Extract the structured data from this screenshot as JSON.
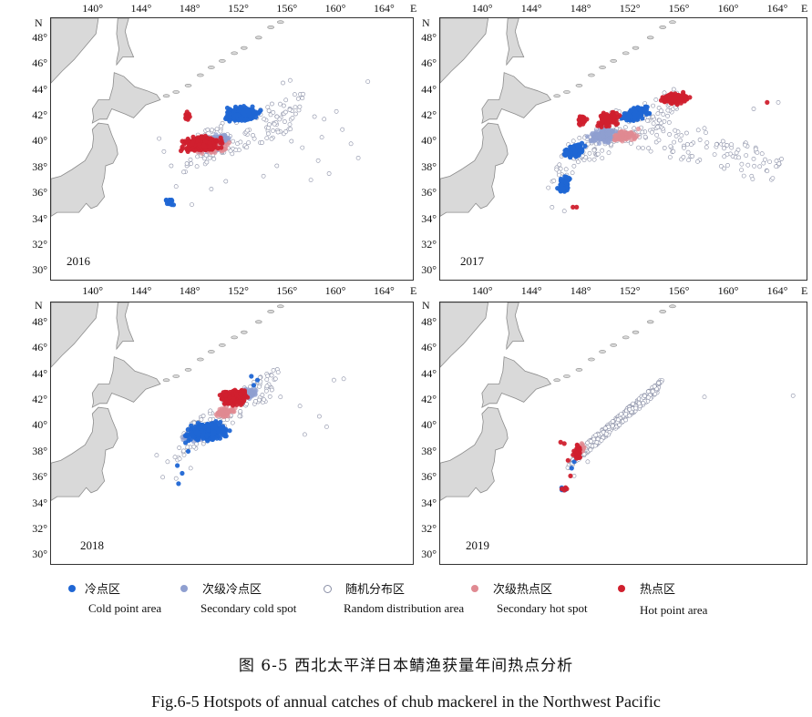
{
  "colors": {
    "cold": "#1f66d4",
    "secondary_cold": "#8f9fd0",
    "random": "#8a8fa6",
    "secondary_hot": "#e08a92",
    "hot": "#d0202e",
    "land": "#d9d9d9",
    "land_edge": "#8c8c8c"
  },
  "axes": {
    "n_label": "N",
    "e_label": "E",
    "x_ticks": [
      "140°",
      "144°",
      "148°",
      "152°",
      "156°",
      "160°",
      "164°"
    ],
    "y_ticks": [
      "48°",
      "46°",
      "44°",
      "42°",
      "40°",
      "38°",
      "36°",
      "34°",
      "32°",
      "30°"
    ]
  },
  "panels": [
    {
      "year": "2016",
      "dominant": "hot/cold split"
    },
    {
      "year": "2017",
      "dominant": "hot/cold mixed"
    },
    {
      "year": "2018",
      "dominant": "cold south, hot north"
    },
    {
      "year": "2019",
      "dominant": "random"
    }
  ],
  "legend": [
    {
      "key": "cold",
      "zh": "冷点区",
      "en": "Cold point area",
      "style": "solid-blue"
    },
    {
      "key": "secondary_cold",
      "zh": "次级冷点区",
      "en": "Secondary cold spot",
      "style": "light-blue"
    },
    {
      "key": "random",
      "zh": "随机分布区",
      "en": "Random distribution area",
      "style": "hollow"
    },
    {
      "key": "secondary_hot",
      "zh": "次级热点区",
      "en": "Secondary hot spot",
      "style": "light-red"
    },
    {
      "key": "hot",
      "zh": "热点区",
      "en": "Hot point area",
      "style": "solid-red"
    }
  ],
  "caption": {
    "zh": "图 6-5  西北太平洋日本鲭渔获量年间热点分析",
    "en": "Fig.6-5 Hotspots of annual catches of chub mackerel in the Northwest Pacific"
  }
}
